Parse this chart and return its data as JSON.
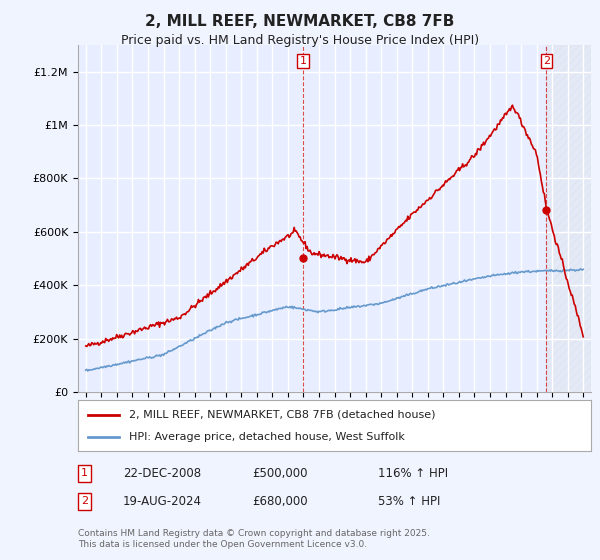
{
  "title": "2, MILL REEF, NEWMARKET, CB8 7FB",
  "subtitle": "Price paid vs. HM Land Registry's House Price Index (HPI)",
  "background_color": "#f0f4ff",
  "plot_bg_color": "#e8eeff",
  "grid_color": "#ffffff",
  "red_color": "#cc0000",
  "blue_color": "#6699cc",
  "sale1_year": 2008.97,
  "sale1_price": 500000,
  "sale2_year": 2024.63,
  "sale2_price": 680000,
  "ylim": [
    0,
    1300000
  ],
  "xlim": [
    1994.5,
    2027.5
  ],
  "legend_label_red": "2, MILL REEF, NEWMARKET, CB8 7FB (detached house)",
  "legend_label_blue": "HPI: Average price, detached house, West Suffolk",
  "annotation1_date": "22-DEC-2008",
  "annotation1_price": "£500,000",
  "annotation1_hpi": "116% ↑ HPI",
  "annotation2_date": "19-AUG-2024",
  "annotation2_price": "£680,000",
  "annotation2_hpi": "53% ↑ HPI",
  "copyright_text": "Contains HM Land Registry data © Crown copyright and database right 2025.\nThis data is licensed under the Open Government Licence v3.0.",
  "yticks": [
    0,
    200000,
    400000,
    600000,
    800000,
    1000000,
    1200000
  ],
  "ytick_labels": [
    "£0",
    "£200K",
    "£400K",
    "£600K",
    "£800K",
    "£1M",
    "£1.2M"
  ],
  "xticks": [
    1995,
    1996,
    1997,
    1998,
    1999,
    2000,
    2001,
    2002,
    2003,
    2004,
    2005,
    2006,
    2007,
    2008,
    2009,
    2010,
    2011,
    2012,
    2013,
    2014,
    2015,
    2016,
    2017,
    2018,
    2019,
    2020,
    2021,
    2022,
    2023,
    2024,
    2025,
    2026,
    2027
  ]
}
